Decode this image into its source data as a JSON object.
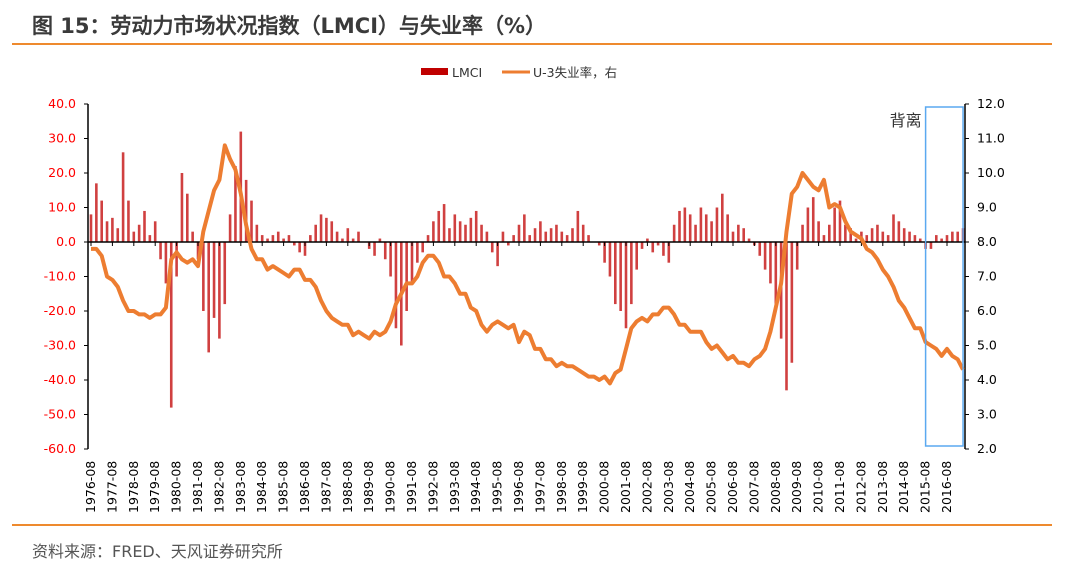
{
  "title": "图 15：劳动力市场状况指数（LMCI）与失业率（%）",
  "source": "资料来源：FRED、天风证券研究所",
  "chart_data": {
    "type": "bar+line",
    "title": "",
    "legend": {
      "position": "top",
      "entries": [
        "LMCI",
        "U-3失业率，右"
      ]
    },
    "colors": {
      "LMCI": "#c00000",
      "U-3": "#ed7d31",
      "left_axis_text": "#ff0000",
      "annotation_box": "#5aa9f0",
      "rule": "#ee8a2e"
    },
    "period_start": "1976-08",
    "frequency": "quarterly",
    "x_tick_labels": [
      "1976-08",
      "1977-08",
      "1978-08",
      "1979-08",
      "1980-08",
      "1981-08",
      "1982-08",
      "1983-08",
      "1984-08",
      "1985-08",
      "1986-08",
      "1987-08",
      "1988-08",
      "1989-08",
      "1990-08",
      "1991-08",
      "1992-08",
      "1993-08",
      "1994-08",
      "1995-08",
      "1996-08",
      "1997-08",
      "1998-08",
      "1999-08",
      "2000-08",
      "2001-08",
      "2002-08",
      "2003-08",
      "2004-08",
      "2005-08",
      "2006-08",
      "2007-08",
      "2008-08",
      "2009-08",
      "2010-08",
      "2011-08",
      "2012-08",
      "2013-08",
      "2014-08",
      "2015-08",
      "2016-08"
    ],
    "y_left": {
      "range": [
        -60,
        40
      ],
      "ticks": [
        "40.0",
        "30.0",
        "20.0",
        "10.0",
        "0.0",
        "-10.0",
        "-20.0",
        "-30.0",
        "-40.0",
        "-50.0",
        "-60.0"
      ]
    },
    "y_right": {
      "range": [
        2,
        12
      ],
      "ticks": [
        "12.0",
        "11.0",
        "10.0",
        "9.0",
        "8.0",
        "7.0",
        "6.0",
        "5.0",
        "4.0",
        "3.0",
        "2.0"
      ]
    },
    "grid": false,
    "series": [
      {
        "name": "LMCI",
        "type": "bar",
        "axis": "left",
        "values": [
          8,
          17,
          12,
          6,
          7,
          4,
          26,
          12,
          3,
          5,
          9,
          2,
          6,
          -5,
          -12,
          -48,
          -10,
          20,
          14,
          3,
          -5,
          -20,
          -32,
          -22,
          -28,
          -18,
          8,
          22,
          32,
          18,
          12,
          5,
          2,
          1,
          2,
          3,
          1,
          2,
          -1,
          -3,
          -4,
          2,
          5,
          8,
          7,
          6,
          3,
          1,
          4,
          1,
          3,
          0,
          -2,
          -4,
          1,
          -5,
          -10,
          -25,
          -30,
          -20,
          -12,
          -6,
          -3,
          2,
          6,
          9,
          11,
          4,
          8,
          6,
          5,
          7,
          9,
          5,
          3,
          -3,
          -7,
          3,
          -1,
          2,
          5,
          8,
          2,
          4,
          6,
          3,
          4,
          5,
          3,
          2,
          4,
          9,
          5,
          2,
          0,
          -1,
          -6,
          -10,
          -18,
          -20,
          -25,
          -18,
          -8,
          -2,
          1,
          -3,
          -1,
          -4,
          -6,
          5,
          9,
          10,
          8,
          5,
          10,
          8,
          6,
          10,
          14,
          8,
          3,
          5,
          4,
          1,
          -1,
          -4,
          -8,
          -12,
          -18,
          -28,
          -43,
          -35,
          -8,
          5,
          10,
          13,
          6,
          2,
          5,
          10,
          12,
          5,
          4,
          1,
          3,
          2,
          4,
          5,
          3,
          2,
          8,
          6,
          4,
          3,
          2,
          1,
          -2,
          -2,
          2,
          1,
          2,
          3,
          3,
          4
        ]
      },
      {
        "name": "U-3失业率，右",
        "type": "line",
        "axis": "right",
        "values": [
          7.8,
          7.8,
          7.6,
          7.0,
          6.9,
          6.7,
          6.3,
          6.0,
          6.0,
          5.9,
          5.9,
          5.8,
          5.9,
          5.9,
          6.1,
          7.5,
          7.7,
          7.5,
          7.4,
          7.5,
          7.3,
          8.3,
          8.9,
          9.5,
          9.8,
          10.8,
          10.4,
          10.1,
          9.4,
          8.5,
          7.8,
          7.5,
          7.5,
          7.2,
          7.3,
          7.2,
          7.1,
          7.0,
          7.2,
          7.2,
          6.9,
          6.9,
          6.7,
          6.3,
          6.0,
          5.8,
          5.7,
          5.6,
          5.6,
          5.3,
          5.4,
          5.3,
          5.2,
          5.4,
          5.3,
          5.4,
          5.7,
          6.2,
          6.5,
          6.8,
          6.8,
          7.0,
          7.4,
          7.6,
          7.6,
          7.4,
          7.0,
          7.0,
          6.8,
          6.5,
          6.5,
          6.1,
          6.0,
          5.6,
          5.4,
          5.6,
          5.7,
          5.6,
          5.5,
          5.6,
          5.1,
          5.4,
          5.3,
          4.9,
          4.9,
          4.6,
          4.6,
          4.4,
          4.5,
          4.4,
          4.4,
          4.3,
          4.2,
          4.1,
          4.1,
          4.0,
          4.1,
          3.9,
          4.2,
          4.3,
          4.9,
          5.5,
          5.7,
          5.8,
          5.7,
          5.9,
          5.9,
          6.1,
          6.1,
          5.9,
          5.6,
          5.6,
          5.4,
          5.4,
          5.4,
          5.1,
          4.9,
          5.0,
          4.8,
          4.6,
          4.7,
          4.5,
          4.5,
          4.4,
          4.6,
          4.7,
          4.9,
          5.4,
          6.1,
          6.8,
          8.3,
          9.4,
          9.6,
          10.0,
          9.8,
          9.6,
          9.5,
          9.8,
          9.0,
          9.1,
          9.0,
          8.6,
          8.3,
          8.2,
          8.1,
          7.8,
          7.7,
          7.5,
          7.2,
          7.0,
          6.7,
          6.3,
          6.1,
          5.8,
          5.5,
          5.5,
          5.1,
          5.0,
          4.9,
          4.7,
          4.9,
          4.7,
          4.6,
          4.3
        ]
      }
    ],
    "annotations": [
      {
        "text": "背离",
        "type": "box",
        "x_from": "2015-08",
        "x_to": "2017-05"
      }
    ]
  }
}
